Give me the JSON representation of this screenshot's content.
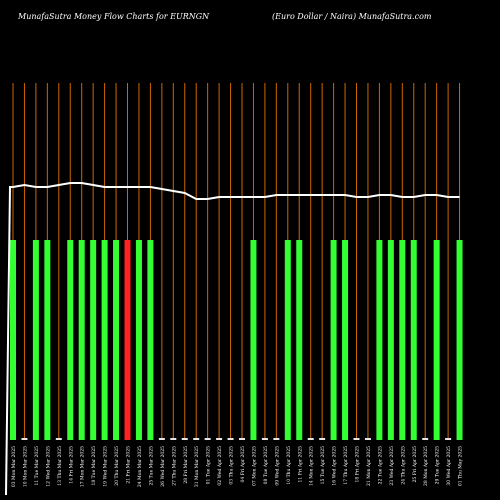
{
  "chart_data": {
    "type": "bar",
    "title": "MunafaSutra  Money Flow  Charts for EURNGN",
    "subtitle": "(Euro  Dollar / Naira) MunafaSutra.com",
    "categories": [
      "03 Mon Mar 2025",
      "10 Mon Mar 2025",
      "11 Tue Mar 2025",
      "12 Wed Mar 2025",
      "13 Thu Mar 2025",
      "14 Fri Mar 2025",
      "17 Mon Mar 2025",
      "18 Tue Mar 2025",
      "19 Wed Mar 2025",
      "20 Thu Mar 2025",
      "21 Fri Mar 2025",
      "24 Mon Mar 2025",
      "25 Tue Mar 2025",
      "26 Wed Mar 2025",
      "27 Thu Mar 2025",
      "28 Fri Mar 2025",
      "31 Mon Mar 2025",
      "01 Tue Apr 2025",
      "02 Wed Apr 2025",
      "03 Thu Apr 2025",
      "04 Fri Apr 2025",
      "07 Mon Apr 2025",
      "08 Tue Apr 2025",
      "09 Wed Apr 2025",
      "10 Thu Apr 2025",
      "11 Fri Apr 2025",
      "14 Mon Apr 2025",
      "15 Tue Apr 2025",
      "16 Wed Apr 2025",
      "17 Thu Apr 2025",
      "18 Fri Apr 2025",
      "21 Mon Apr 2025",
      "22 Tue Apr 2025",
      "23 Wed Apr 2025",
      "24 Thu Apr 2025",
      "25 Fri Apr 2025",
      "28 Mon Apr 2025",
      "29 Tue Apr 2025",
      "30 Wed Apr 2025",
      "01 Thu May 2025"
    ],
    "bar_heights": [
      1,
      0,
      1,
      1,
      0,
      1,
      1,
      1,
      1,
      1,
      1,
      1,
      1,
      0,
      0,
      0,
      0,
      0,
      0,
      0,
      0,
      1,
      0,
      0,
      1,
      1,
      0,
      0,
      1,
      1,
      0,
      0,
      1,
      1,
      1,
      1,
      0,
      1,
      0,
      1
    ],
    "bar_colors": [
      "green",
      "none",
      "green",
      "green",
      "none",
      "green",
      "green",
      "green",
      "green",
      "green",
      "red",
      "green",
      "green",
      "none",
      "none",
      "none",
      "none",
      "none",
      "none",
      "none",
      "none",
      "green",
      "none",
      "none",
      "green",
      "green",
      "none",
      "none",
      "green",
      "green",
      "none",
      "none",
      "green",
      "green",
      "green",
      "green",
      "none",
      "green",
      "none",
      "green"
    ],
    "price_line": [
      186,
      185,
      186,
      186,
      185,
      184,
      184,
      185,
      186,
      186,
      186,
      186,
      186,
      187,
      188,
      189,
      192,
      192,
      191,
      191,
      191,
      191,
      191,
      190,
      190,
      190,
      190,
      190,
      190,
      190,
      191,
      191,
      190,
      190,
      191,
      191,
      190,
      190,
      191,
      191
    ],
    "colors": {
      "background": "#000000",
      "gridline": "#cc6600",
      "bar_green": "#33ff33",
      "bar_red": "#ff2222",
      "line": "#ffffff",
      "text": "#ffffff"
    }
  }
}
